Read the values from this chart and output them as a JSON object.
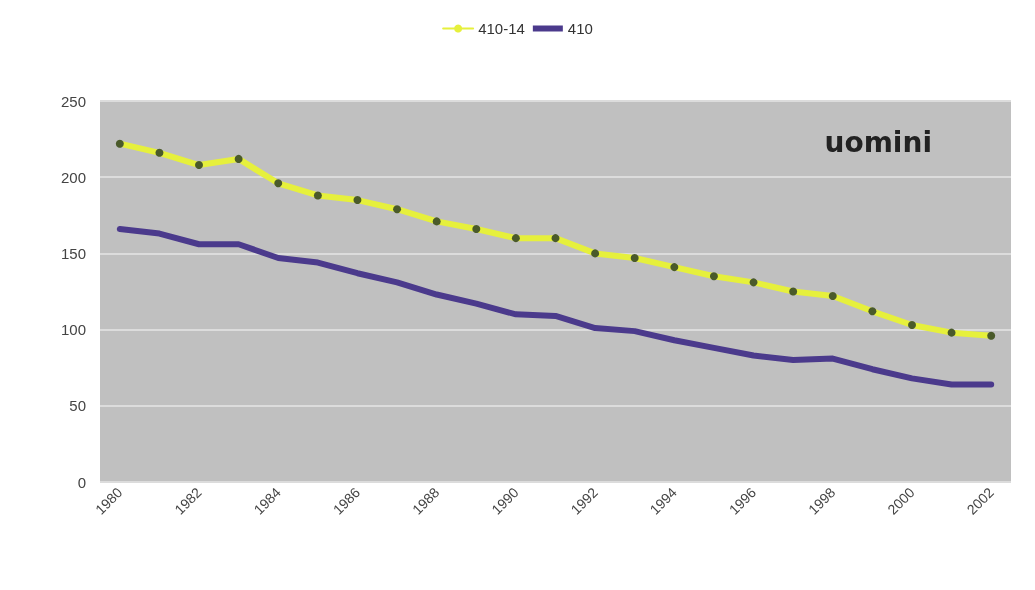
{
  "chart_data": {
    "type": "line",
    "categories": [
      "1980",
      null,
      "1982",
      null,
      "1984",
      null,
      "1986",
      null,
      "1988",
      null,
      "1990",
      null,
      "1992",
      null,
      "1994",
      null,
      "1996",
      null,
      "1998",
      null,
      "2000",
      null,
      "2002"
    ],
    "series": [
      {
        "name": "410-14",
        "color": "#e6f03c",
        "marker": "circle",
        "values": [
          222,
          216,
          208,
          212,
          196,
          188,
          185,
          179,
          171,
          166,
          160,
          160,
          150,
          147,
          141,
          135,
          131,
          125,
          122,
          112,
          103,
          98,
          96
        ]
      },
      {
        "name": "410",
        "color": "#4b3a8c",
        "marker": "none",
        "values": [
          166,
          163,
          156,
          156,
          147,
          144,
          137,
          131,
          123,
          117,
          110,
          109,
          101,
          99,
          93,
          88,
          83,
          80,
          81,
          74,
          68,
          64,
          64
        ]
      }
    ],
    "ylim": [
      0,
      250
    ],
    "yticks": [
      0,
      50,
      100,
      150,
      200,
      250
    ],
    "grid": "y",
    "legend": "top",
    "annotations": [
      "uomini"
    ]
  }
}
